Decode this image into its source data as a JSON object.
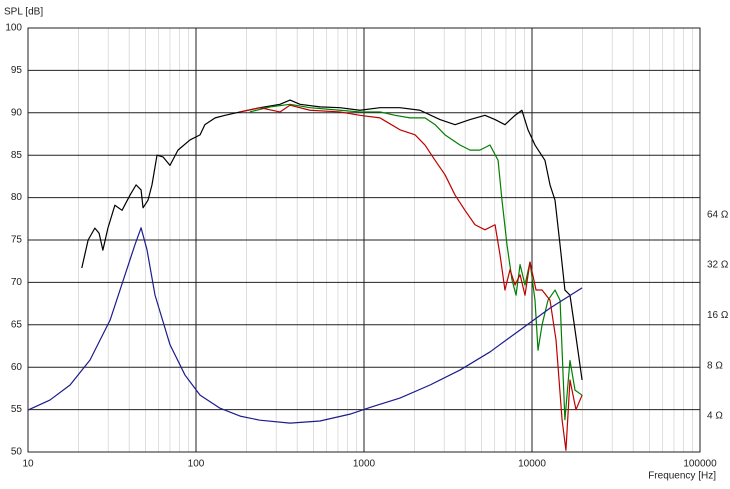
{
  "chart_data": {
    "type": "line",
    "y_label": "SPL [dB]",
    "x_label": "Frequency [Hz]",
    "xscale": "log",
    "xlim": [
      10,
      100000
    ],
    "xticks": [
      10,
      100,
      1000,
      10000,
      100000
    ],
    "ylim": [
      50,
      100
    ],
    "yticks": [
      50,
      55,
      60,
      65,
      70,
      75,
      80,
      85,
      90,
      95,
      100
    ],
    "y2scale": "log",
    "y2lim": [
      2.44,
      838
    ],
    "y2ticks": [
      {
        "value": 4,
        "label": "4 Ω"
      },
      {
        "value": 8,
        "label": "8 Ω"
      },
      {
        "value": 16,
        "label": "16 Ω"
      },
      {
        "value": 32,
        "label": "32 Ω"
      },
      {
        "value": 64,
        "label": "64 Ω"
      }
    ],
    "grid": true,
    "series": [
      {
        "color": "#000000",
        "x": [
          20.9,
          22.8,
          25.0,
          26.5,
          27.9,
          29.9,
          32.9,
          36.3,
          40.5,
          44.0,
          47.1,
          48.4,
          51.8,
          54.7,
          58.6,
          63.6,
          70.0,
          78.1,
          92.1,
          105.7,
          113,
          130,
          149,
          183,
          240,
          316,
          363,
          416,
          547,
          719,
          946,
          1245,
          1637,
          2154,
          2833,
          3483,
          4278,
          5248,
          6026,
          6902,
          7925,
          8710,
          9462,
          10420,
          11940,
          12800,
          13710,
          14690,
          15700,
          16830,
          18030,
          19860
        ],
        "values": [
          71.7,
          75.0,
          76.4,
          75.8,
          73.8,
          76.4,
          79.1,
          78.5,
          80.3,
          81.5,
          80.9,
          78.8,
          79.7,
          81.5,
          85.0,
          84.8,
          83.8,
          85.6,
          86.8,
          87.4,
          88.6,
          89.4,
          89.7,
          90.1,
          90.6,
          91.0,
          91.5,
          91.0,
          90.7,
          90.6,
          90.3,
          90.6,
          90.6,
          90.3,
          89.2,
          88.6,
          89.2,
          89.7,
          89.2,
          88.6,
          89.7,
          90.3,
          88.0,
          86.2,
          84.4,
          81.5,
          79.7,
          74.4,
          69.1,
          68.5,
          64.4,
          58.5
        ]
      },
      {
        "color": "#008000",
        "x": [
          209,
          276,
          363,
          477,
          719,
          946,
          1245,
          1531,
          1879,
          2307,
          2649,
          3034,
          3726,
          4278,
          4898,
          5623,
          6281,
          6628,
          7102,
          7603,
          8035,
          8492,
          9085,
          9727,
          10420,
          10860,
          11480,
          12450,
          13710,
          14690,
          15700,
          16830,
          18030,
          19860
        ],
        "values": [
          90.1,
          90.7,
          91.0,
          90.6,
          90.3,
          90.1,
          90.1,
          89.7,
          89.4,
          89.4,
          88.6,
          87.4,
          86.2,
          85.6,
          85.6,
          86.2,
          84.4,
          79.7,
          74.4,
          70.3,
          68.5,
          72.1,
          69.7,
          72.4,
          67.9,
          62.0,
          65.0,
          67.9,
          69.1,
          67.9,
          53.8,
          60.8,
          57.3,
          56.7
        ]
      },
      {
        "color": "#c00000",
        "x": [
          183,
          240,
          316,
          363,
          477,
          719,
          946,
          1245,
          1637,
          2013,
          2307,
          2649,
          3034,
          3483,
          3990,
          4579,
          5248,
          6026,
          6457,
          6902,
          7396,
          7925,
          8492,
          9085,
          9727,
          10570,
          11480,
          12800,
          13900,
          15100,
          15920,
          16830,
          18270,
          19860
        ],
        "values": [
          90.1,
          90.6,
          90.1,
          90.9,
          90.3,
          90.1,
          89.7,
          89.4,
          88.0,
          87.4,
          86.2,
          84.4,
          82.7,
          80.3,
          78.5,
          76.8,
          76.2,
          76.8,
          73.2,
          69.1,
          71.5,
          69.7,
          70.9,
          68.5,
          72.4,
          69.1,
          69.1,
          67.9,
          63.2,
          53.8,
          50.2,
          58.5,
          55.0,
          56.7
        ]
      },
      {
        "color": "#1c1c8c",
        "axis": "y2",
        "x": [
          10,
          13.5,
          17.8,
          23.4,
          30.8,
          37.8,
          43.3,
          47.1,
          51.1,
          57.0,
          70.0,
          86.0,
          105.7,
          139,
          183,
          240,
          363,
          547,
          826,
          1086,
          1637,
          2472,
          3726,
          5623,
          8492,
          12800,
          19860
        ],
        "values": [
          4.35,
          4.99,
          6.14,
          8.66,
          15.0,
          28.0,
          42.3,
          53.5,
          39.5,
          21.2,
          10.7,
          7.04,
          5.34,
          4.46,
          4.0,
          3.78,
          3.63,
          3.74,
          4.11,
          4.51,
          5.13,
          6.14,
          7.54,
          9.68,
          13.1,
          17.7,
          23.4
        ]
      }
    ]
  }
}
